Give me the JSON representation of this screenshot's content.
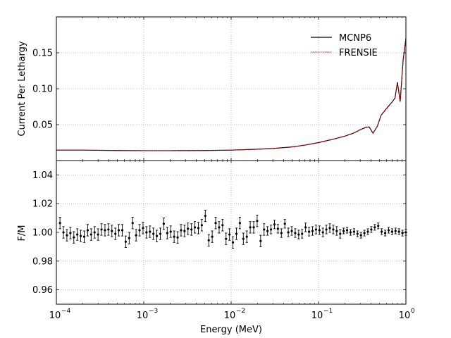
{
  "chart_data": [
    {
      "type": "line",
      "title": "",
      "xlabel": "",
      "ylabel": "Current Per Lethargy",
      "xscale": "log",
      "xlim": [
        0.0001,
        1
      ],
      "ylim": [
        0.0,
        0.2
      ],
      "yticks": [
        "0.05",
        "0.10",
        "0.15"
      ],
      "grid": true,
      "legend_position": "top-right",
      "series": [
        {
          "name": "MCNP6",
          "color": "#000000",
          "style": "solid",
          "x": [
            0.0001,
            0.0002,
            0.0005,
            0.001,
            0.002,
            0.005,
            0.01,
            0.02,
            0.03,
            0.05,
            0.07,
            0.1,
            0.15,
            0.2,
            0.25,
            0.3,
            0.35,
            0.38,
            0.42,
            0.47,
            0.52,
            0.6,
            0.7,
            0.75,
            0.8,
            0.86,
            0.93,
            1.0
          ],
          "y": [
            0.0145,
            0.0145,
            0.014,
            0.0138,
            0.0138,
            0.014,
            0.0145,
            0.0158,
            0.0168,
            0.019,
            0.0215,
            0.025,
            0.03,
            0.034,
            0.038,
            0.043,
            0.0463,
            0.0468,
            0.038,
            0.0475,
            0.063,
            0.0725,
            0.082,
            0.087,
            0.109,
            0.082,
            0.14,
            0.17
          ]
        },
        {
          "name": "FRENSIE",
          "color": "#ff0000",
          "style": "dotted",
          "x": [
            0.0001,
            0.0002,
            0.0005,
            0.001,
            0.002,
            0.005,
            0.01,
            0.02,
            0.03,
            0.05,
            0.07,
            0.1,
            0.15,
            0.2,
            0.25,
            0.3,
            0.35,
            0.38,
            0.42,
            0.47,
            0.52,
            0.6,
            0.7,
            0.75,
            0.8,
            0.86,
            0.93,
            1.0
          ],
          "y": [
            0.0145,
            0.0145,
            0.014,
            0.0138,
            0.0138,
            0.014,
            0.0145,
            0.0158,
            0.0168,
            0.019,
            0.0215,
            0.025,
            0.03,
            0.034,
            0.038,
            0.043,
            0.0463,
            0.0468,
            0.038,
            0.0475,
            0.063,
            0.0725,
            0.082,
            0.087,
            0.109,
            0.082,
            0.14,
            0.17
          ]
        }
      ]
    },
    {
      "type": "scatter",
      "title": "",
      "xlabel": "Energy (MeV)",
      "ylabel": "F/M",
      "xscale": "log",
      "xlim": [
        0.0001,
        1
      ],
      "ylim": [
        0.95,
        1.05
      ],
      "yticks": [
        "0.96",
        "0.98",
        "1.00",
        "1.02",
        "1.04"
      ],
      "xticks": [
        "10",
        "10",
        "10",
        "10",
        "10"
      ],
      "xtick_exponents": [
        "−4",
        "−3",
        "−2",
        "−1",
        "0"
      ],
      "grid": true,
      "error_bars": true,
      "series": [
        {
          "name": "",
          "color": "#000000",
          "values": [
            1.0065,
            1.0,
            0.998,
            0.9995,
            0.9965,
            0.9985,
            0.9975,
            0.997,
            1.0015,
            0.9985,
            1.0,
            0.9985,
            1.002,
            1.0015,
            1.002,
            1.001,
            0.999,
            1.0015,
            1.0015,
            0.9935,
            0.996,
            1.0065,
            0.998,
            1.0015,
            1.003,
            1.0,
            1.0005,
            0.999,
            0.9975,
            0.999,
            1.006,
            0.9995,
            1.0005,
            0.997,
            0.9965,
            1.0015,
            1.001,
            1.0025,
            1.002,
            1.0035,
            1.003,
            1.005,
            1.0115,
            0.9945,
            0.997,
            1.0065,
            1.0035,
            1.005,
            0.9955,
            0.9985,
            0.993,
            0.999,
            1.0065,
            0.9955,
            0.997,
            1.0035,
            1.0035,
            1.008,
            0.994,
            1.002,
            1.001,
            1.002,
            1.0055,
            1.0025,
            0.9995,
            1.006,
            1.0,
            1.001,
            0.9995,
            0.9985,
            0.999,
            1.0035,
            1.0005,
            1.001,
            1.002,
            1.0015,
            1.0,
            1.002,
            1.003,
            1.002,
            1.001,
            0.999,
            1.001,
            1.0015,
            1.0,
            1.0005,
            0.999,
            0.998,
            0.9995,
            1.0005,
            1.002,
            1.0035,
            1.0045,
            1.0005,
            0.9995,
            1.0015,
            1.0005,
            1.001,
            1.0005,
            0.9995,
            1.0
          ],
          "errors": [
            0.004,
            0.004,
            0.004,
            0.004,
            0.004,
            0.004,
            0.004,
            0.004,
            0.004,
            0.004,
            0.004,
            0.004,
            0.004,
            0.004,
            0.004,
            0.004,
            0.004,
            0.004,
            0.004,
            0.004,
            0.004,
            0.004,
            0.004,
            0.004,
            0.004,
            0.004,
            0.004,
            0.004,
            0.004,
            0.004,
            0.004,
            0.004,
            0.004,
            0.004,
            0.004,
            0.004,
            0.004,
            0.004,
            0.004,
            0.004,
            0.004,
            0.004,
            0.004,
            0.004,
            0.004,
            0.004,
            0.004,
            0.004,
            0.004,
            0.004,
            0.004,
            0.004,
            0.004,
            0.004,
            0.004,
            0.004,
            0.004,
            0.004,
            0.004,
            0.004,
            0.003,
            0.003,
            0.003,
            0.003,
            0.003,
            0.003,
            0.003,
            0.003,
            0.003,
            0.003,
            0.003,
            0.003,
            0.003,
            0.003,
            0.003,
            0.003,
            0.003,
            0.003,
            0.003,
            0.003,
            0.003,
            0.003,
            0.002,
            0.002,
            0.002,
            0.002,
            0.002,
            0.002,
            0.002,
            0.002,
            0.002,
            0.002,
            0.002,
            0.002,
            0.002,
            0.002,
            0.002,
            0.002,
            0.002,
            0.002,
            0.002
          ]
        }
      ]
    }
  ]
}
